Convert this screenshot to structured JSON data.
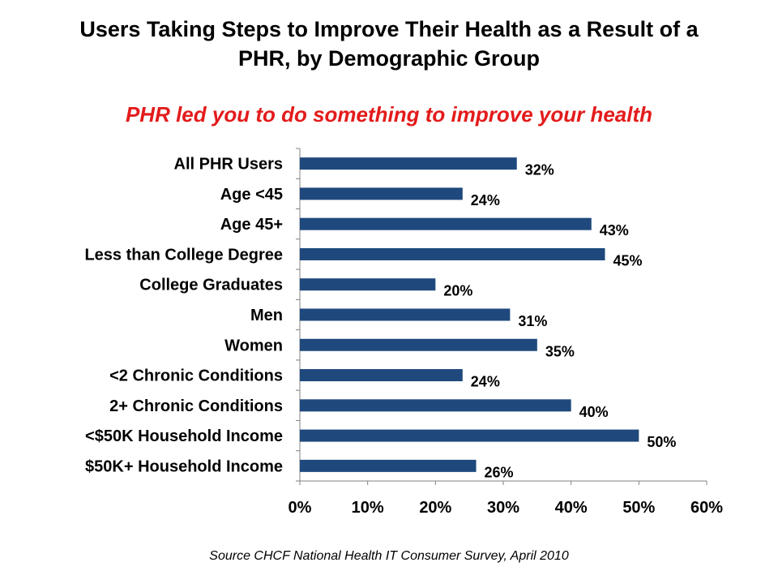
{
  "title": {
    "line1": "Users Taking Steps to Improve Their Health as a Result of a",
    "line2": "PHR, by Demographic Group"
  },
  "subtitle": "PHR led you to do something to improve your health",
  "source": "Source CHCF National Health IT Consumer Survey, April 2010",
  "colors": {
    "bar": "#1f497d",
    "subtitle": "#e31b1b",
    "axis": "#808080"
  },
  "chart_data": {
    "type": "bar",
    "orientation": "horizontal",
    "categories": [
      "All PHR Users",
      "Age <45",
      "Age 45+",
      "Less than College Degree",
      "College Graduates",
      "Men",
      "Women",
      "<2 Chronic Conditions",
      "2+ Chronic Conditions",
      "<$50K Household Income",
      "$50K+ Household Income"
    ],
    "values": [
      32,
      24,
      43,
      45,
      20,
      31,
      35,
      24,
      40,
      50,
      26
    ],
    "value_labels": [
      "32%",
      "24%",
      "43%",
      "45%",
      "20%",
      "31%",
      "35%",
      "24%",
      "40%",
      "50%",
      "26%"
    ],
    "x_ticks": [
      0,
      10,
      20,
      30,
      40,
      50,
      60
    ],
    "x_tick_labels": [
      "0%",
      "10%",
      "20%",
      "30%",
      "40%",
      "50%",
      "60%"
    ],
    "xlim": [
      0,
      60
    ],
    "grid": false,
    "legend": "none"
  }
}
